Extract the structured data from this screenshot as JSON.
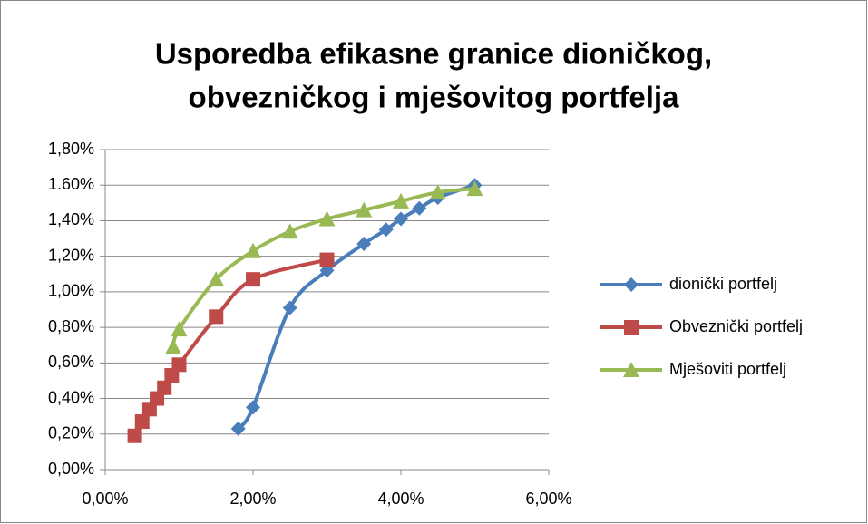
{
  "chart_data": {
    "type": "scatter",
    "title": [
      "Usporedba efikasne granice dioničkog,",
      "obvezničkog i mješovitog portfelja"
    ],
    "xlim": [
      0,
      6
    ],
    "xticks": [
      {
        "value": 0,
        "label": "0,00%"
      },
      {
        "value": 2,
        "label": "2,00%"
      },
      {
        "value": 4,
        "label": "4,00%"
      },
      {
        "value": 6,
        "label": "6,00%"
      }
    ],
    "ylim": [
      0,
      1.8
    ],
    "yticks": [
      {
        "value": 0,
        "label": "0,00%"
      },
      {
        "value": 0.2,
        "label": "0,20%"
      },
      {
        "value": 0.4,
        "label": "0,40%"
      },
      {
        "value": 0.6,
        "label": "0,60%"
      },
      {
        "value": 0.8,
        "label": "0,80%"
      },
      {
        "value": 1.0,
        "label": "1,00%"
      },
      {
        "value": 1.2,
        "label": "1,20%"
      },
      {
        "value": 1.4,
        "label": "1,40%"
      },
      {
        "value": 1.6,
        "label": "1.60%"
      },
      {
        "value": 1.8,
        "label": "1,80%"
      }
    ],
    "grid": true,
    "legend": "right",
    "series": [
      {
        "name": "dionički portfelj",
        "color": "#4a7ebb",
        "marker": "diamond",
        "x": [
          1.8,
          2.0,
          2.5,
          3.0,
          3.5,
          3.8,
          4.0,
          4.25,
          4.5,
          5.0
        ],
        "values": [
          0.23,
          0.35,
          0.91,
          1.12,
          1.27,
          1.35,
          1.41,
          1.47,
          1.53,
          1.6
        ]
      },
      {
        "name": "Obveznički portfelj",
        "color": "#be4b48",
        "marker": "square",
        "x": [
          0.4,
          0.5,
          0.6,
          0.7,
          0.8,
          0.9,
          1.0,
          1.5,
          2.0,
          3.0
        ],
        "values": [
          0.19,
          0.27,
          0.34,
          0.4,
          0.46,
          0.53,
          0.59,
          0.86,
          1.07,
          1.18
        ]
      },
      {
        "name": "Mješoviti portfelj",
        "color": "#98b954",
        "marker": "triangle",
        "x": [
          0.92,
          1.0,
          1.5,
          2.0,
          2.5,
          3.0,
          3.5,
          4.0,
          4.5,
          5.0
        ],
        "values": [
          0.69,
          0.79,
          1.07,
          1.23,
          1.34,
          1.41,
          1.46,
          1.51,
          1.56,
          1.58
        ]
      }
    ]
  }
}
